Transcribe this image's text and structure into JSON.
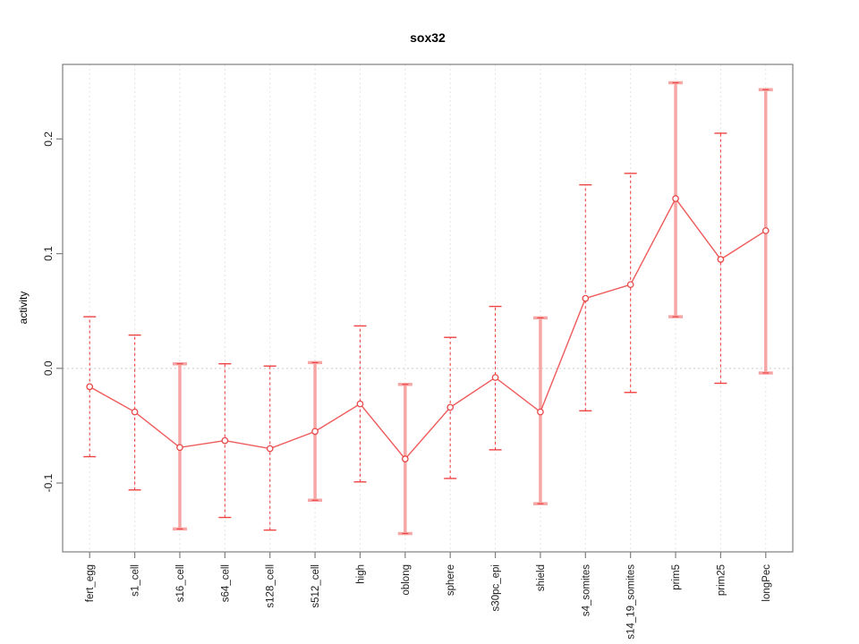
{
  "figure": {
    "title": "sox32",
    "y_axis_title": "activity"
  },
  "chart_data": {
    "type": "line",
    "title": "sox32",
    "xlabel": "",
    "ylabel": "activity",
    "legend": "none",
    "grid": "dashed vertical gridline at each category; dotted horizontal reference line at y=0",
    "categories": [
      "fert_egg",
      "s1_cell",
      "s16_cell",
      "s64_cell",
      "s128_cell",
      "s512_cell",
      "high",
      "oblong",
      "sphere",
      "s30pc_epi",
      "shield",
      "s4_somites",
      "s14_19_somites",
      "prim5",
      "prim25",
      "longPec"
    ],
    "series": [
      {
        "name": "activity",
        "marker": "open-circle",
        "values": [
          -0.016,
          -0.038,
          -0.069,
          -0.063,
          -0.07,
          -0.055,
          -0.031,
          -0.079,
          -0.034,
          -0.008,
          -0.038,
          0.061,
          0.073,
          0.148,
          0.095,
          0.12
        ],
        "error_high": [
          0.045,
          0.029,
          0.004,
          0.004,
          0.002,
          0.005,
          0.037,
          -0.014,
          0.027,
          0.054,
          0.044,
          0.16,
          0.17,
          0.249,
          0.205,
          0.243
        ],
        "error_low": [
          -0.077,
          -0.106,
          -0.14,
          -0.13,
          -0.141,
          -0.115,
          -0.099,
          -0.144,
          -0.096,
          -0.071,
          -0.118,
          -0.037,
          -0.021,
          0.045,
          -0.013,
          -0.004
        ]
      }
    ],
    "error_bar_styles": [
      "dashed",
      "dashed",
      "light",
      "dashed",
      "dashed",
      "light",
      "dashed",
      "light",
      "dashed",
      "dashed",
      "light",
      "dashed",
      "dashed",
      "light",
      "dashed",
      "light"
    ],
    "yticks": [
      -0.1,
      0.0,
      0.1,
      0.2
    ],
    "ytick_labels": [
      "-0.1",
      "0.0",
      "0.1",
      "0.2"
    ],
    "ylim": [
      -0.16,
      0.265
    ],
    "colors": {
      "point": "#e84848",
      "line": "#ef5a5a",
      "error_dashed": "#ef4444",
      "error_light": "#f7a6a6",
      "grid": "#e4e4e4",
      "zero_line": "#c9c9c9",
      "frame": "#7f7f7f",
      "text": "#1a1a1a"
    }
  }
}
